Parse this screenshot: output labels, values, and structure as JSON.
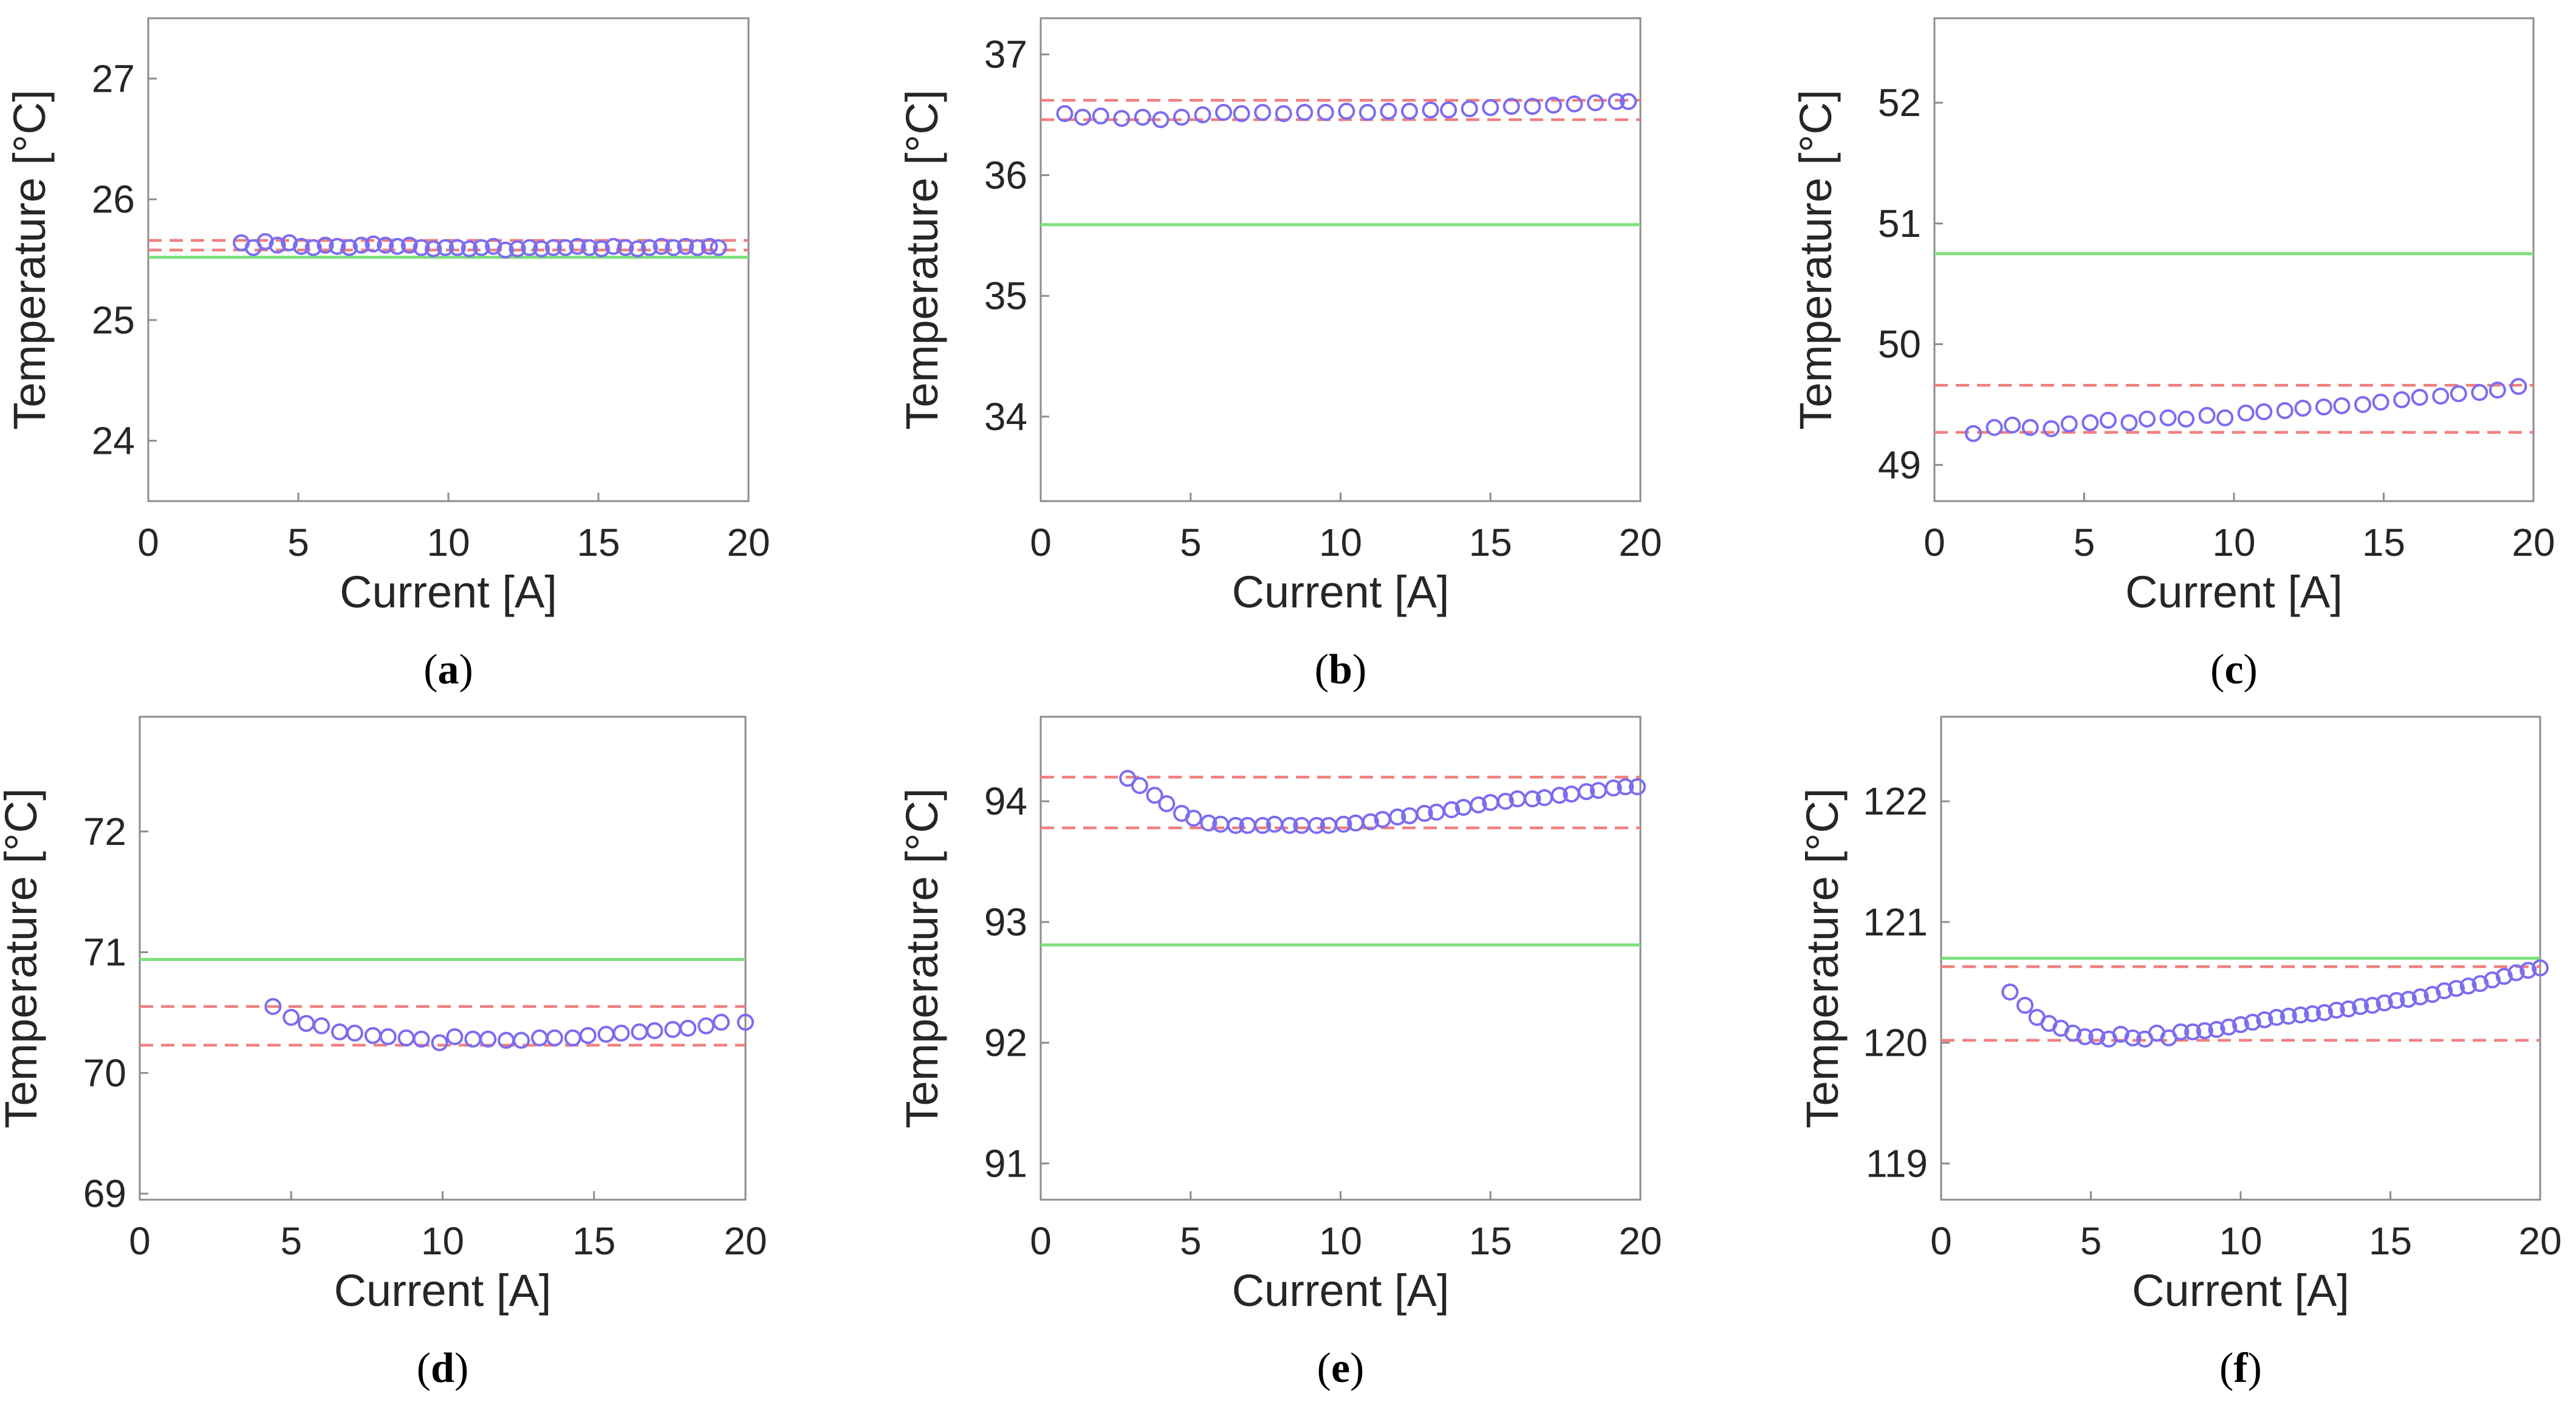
{
  "figure": {
    "colors": {
      "reference_line": "#7ee07e",
      "bounds_line": "#f07f7f",
      "markers": "#7b6cf0",
      "axes": "#8c8c8c",
      "text": "#262626"
    }
  },
  "chart_data": [
    {
      "type": "scatter",
      "caption": {
        "open": "(",
        "letter": "a",
        "close": ")"
      },
      "xlabel": "Current [A]",
      "ylabel": "Temperature [°C]",
      "xlim": [
        0,
        20
      ],
      "ylim": [
        23.5,
        27.5
      ],
      "xticks": [
        0,
        5,
        10,
        15,
        20
      ],
      "yticks": [
        24,
        25,
        26,
        27
      ],
      "reference_line": 25.52,
      "bounds": [
        25.58,
        25.66
      ],
      "x": [
        3.1,
        3.5,
        3.9,
        4.3,
        4.7,
        5.1,
        5.5,
        5.9,
        6.3,
        6.7,
        7.1,
        7.5,
        7.9,
        8.3,
        8.7,
        9.1,
        9.5,
        9.9,
        10.3,
        10.7,
        11.1,
        11.5,
        11.9,
        12.3,
        12.7,
        13.1,
        13.5,
        13.9,
        14.3,
        14.7,
        15.1,
        15.5,
        15.9,
        16.3,
        16.7,
        17.1,
        17.5,
        17.9,
        18.3,
        18.7,
        19.0
      ],
      "y": [
        25.64,
        25.6,
        25.65,
        25.62,
        25.64,
        25.61,
        25.6,
        25.62,
        25.61,
        25.6,
        25.62,
        25.63,
        25.62,
        25.61,
        25.62,
        25.6,
        25.59,
        25.6,
        25.6,
        25.59,
        25.6,
        25.61,
        25.58,
        25.59,
        25.6,
        25.59,
        25.6,
        25.6,
        25.61,
        25.6,
        25.59,
        25.61,
        25.6,
        25.59,
        25.6,
        25.61,
        25.6,
        25.61,
        25.6,
        25.61,
        25.6
      ]
    },
    {
      "type": "scatter",
      "caption": {
        "open": "(",
        "letter": "b",
        "close": ")"
      },
      "xlabel": "Current [A]",
      "ylabel": "Temperature [°C]",
      "xlim": [
        0,
        20
      ],
      "ylim": [
        33.3,
        37.3
      ],
      "xticks": [
        0,
        5,
        10,
        15,
        20
      ],
      "yticks": [
        34,
        35,
        36,
        37
      ],
      "reference_line": 35.59,
      "bounds": [
        36.46,
        36.62
      ],
      "x": [
        0.8,
        1.4,
        2.0,
        2.7,
        3.4,
        4.0,
        4.7,
        5.4,
        6.1,
        6.7,
        7.4,
        8.1,
        8.8,
        9.5,
        10.2,
        10.9,
        11.6,
        12.3,
        13.0,
        13.6,
        14.3,
        15.0,
        15.7,
        16.4,
        17.1,
        17.8,
        18.5,
        19.2,
        19.6
      ],
      "y": [
        36.51,
        36.48,
        36.49,
        36.47,
        36.48,
        36.46,
        36.48,
        36.5,
        36.52,
        36.51,
        36.52,
        36.51,
        36.52,
        36.52,
        36.53,
        36.52,
        36.53,
        36.53,
        36.54,
        36.54,
        36.55,
        36.56,
        36.57,
        36.57,
        36.58,
        36.59,
        36.6,
        36.61,
        36.61
      ]
    },
    {
      "type": "scatter",
      "caption": {
        "open": "(",
        "letter": "c",
        "close": ")"
      },
      "xlabel": "Current [A]",
      "ylabel": "Temperature [°C]",
      "xlim": [
        0,
        20
      ],
      "ylim": [
        48.7,
        52.7
      ],
      "xticks": [
        0,
        5,
        10,
        15,
        20
      ],
      "yticks": [
        49,
        50,
        51,
        52
      ],
      "reference_line": 50.75,
      "bounds": [
        49.27,
        49.66
      ],
      "x": [
        1.3,
        2.0,
        2.6,
        3.2,
        3.9,
        4.5,
        5.2,
        5.8,
        6.5,
        7.1,
        7.8,
        8.4,
        9.1,
        9.7,
        10.4,
        11.0,
        11.7,
        12.3,
        13.0,
        13.6,
        14.3,
        14.9,
        15.6,
        16.2,
        16.9,
        17.5,
        18.2,
        18.8,
        19.5
      ],
      "y": [
        49.26,
        49.31,
        49.33,
        49.31,
        49.3,
        49.34,
        49.35,
        49.37,
        49.35,
        49.38,
        49.39,
        49.38,
        49.41,
        49.39,
        49.43,
        49.44,
        49.45,
        49.47,
        49.48,
        49.49,
        49.5,
        49.52,
        49.54,
        49.56,
        49.57,
        49.59,
        49.6,
        49.62,
        49.65
      ]
    },
    {
      "type": "scatter",
      "caption": {
        "open": "(",
        "letter": "d",
        "close": ")"
      },
      "xlabel": "Current [A]",
      "ylabel": "Temperature [°C]",
      "xlim": [
        0,
        20
      ],
      "ylim": [
        68.95,
        72.95
      ],
      "xticks": [
        0,
        5,
        10,
        15,
        20
      ],
      "yticks": [
        69,
        70,
        71,
        72
      ],
      "reference_line": 70.94,
      "bounds": [
        70.23,
        70.55
      ],
      "x": [
        4.4,
        5.0,
        5.5,
        6.0,
        6.6,
        7.1,
        7.7,
        8.2,
        8.8,
        9.3,
        9.9,
        10.4,
        11.0,
        11.5,
        12.1,
        12.6,
        13.2,
        13.7,
        14.3,
        14.8,
        15.4,
        15.9,
        16.5,
        17.0,
        17.6,
        18.1,
        18.7,
        19.2,
        20.0
      ],
      "y": [
        70.55,
        70.46,
        70.41,
        70.39,
        70.34,
        70.33,
        70.31,
        70.3,
        70.29,
        70.28,
        70.25,
        70.3,
        70.28,
        70.28,
        70.27,
        70.27,
        70.29,
        70.29,
        70.29,
        70.31,
        70.32,
        70.33,
        70.34,
        70.35,
        70.36,
        70.37,
        70.39,
        70.42,
        70.42
      ]
    },
    {
      "type": "scatter",
      "caption": {
        "open": "(",
        "letter": "e",
        "close": ")"
      },
      "xlabel": "Current [A]",
      "ylabel": "Temperature [°C]",
      "xlim": [
        0,
        20
      ],
      "ylim": [
        90.7,
        94.7
      ],
      "xticks": [
        0,
        5,
        10,
        15,
        20
      ],
      "yticks": [
        91,
        92,
        93,
        94
      ],
      "reference_line": 92.81,
      "bounds": [
        93.78,
        94.2
      ],
      "x": [
        2.9,
        3.3,
        3.8,
        4.2,
        4.7,
        5.1,
        5.6,
        6.0,
        6.5,
        6.9,
        7.4,
        7.8,
        8.3,
        8.7,
        9.2,
        9.6,
        10.1,
        10.5,
        11.0,
        11.4,
        11.9,
        12.3,
        12.8,
        13.2,
        13.7,
        14.1,
        14.6,
        15.0,
        15.5,
        15.9,
        16.4,
        16.8,
        17.3,
        17.7,
        18.2,
        18.6,
        19.1,
        19.5,
        19.9
      ],
      "y": [
        94.19,
        94.13,
        94.05,
        93.98,
        93.9,
        93.86,
        93.82,
        93.81,
        93.8,
        93.8,
        93.8,
        93.81,
        93.8,
        93.8,
        93.8,
        93.8,
        93.81,
        93.82,
        93.83,
        93.85,
        93.87,
        93.88,
        93.9,
        93.91,
        93.93,
        93.95,
        93.97,
        93.99,
        94.0,
        94.02,
        94.02,
        94.03,
        94.05,
        94.06,
        94.08,
        94.09,
        94.11,
        94.12,
        94.12
      ]
    },
    {
      "type": "scatter",
      "caption": {
        "open": "(",
        "letter": "f",
        "close": ")"
      },
      "xlabel": "Current [A]",
      "ylabel": "Temperature [°C]",
      "xlim": [
        0,
        20
      ],
      "ylim": [
        118.7,
        122.7
      ],
      "xticks": [
        0,
        5,
        10,
        15,
        20
      ],
      "yticks": [
        119,
        120,
        121,
        122
      ],
      "reference_line": 120.7,
      "bounds": [
        120.02,
        120.63
      ],
      "x": [
        2.3,
        2.8,
        3.2,
        3.6,
        4.0,
        4.4,
        4.8,
        5.2,
        5.6,
        6.0,
        6.4,
        6.8,
        7.2,
        7.6,
        8.0,
        8.4,
        8.8,
        9.2,
        9.6,
        10.0,
        10.4,
        10.8,
        11.2,
        11.6,
        12.0,
        12.4,
        12.8,
        13.2,
        13.6,
        14.0,
        14.4,
        14.8,
        15.2,
        15.6,
        16.0,
        16.4,
        16.8,
        17.2,
        17.6,
        18.0,
        18.4,
        18.8,
        19.2,
        19.6,
        20.0
      ],
      "y": [
        120.42,
        120.31,
        120.21,
        120.16,
        120.12,
        120.08,
        120.05,
        120.05,
        120.03,
        120.07,
        120.04,
        120.03,
        120.08,
        120.04,
        120.09,
        120.09,
        120.1,
        120.11,
        120.13,
        120.15,
        120.17,
        120.19,
        120.21,
        120.22,
        120.23,
        120.24,
        120.25,
        120.27,
        120.28,
        120.3,
        120.31,
        120.33,
        120.35,
        120.36,
        120.38,
        120.4,
        120.43,
        120.45,
        120.47,
        120.49,
        120.52,
        120.55,
        120.58,
        120.6,
        120.62
      ]
    }
  ]
}
